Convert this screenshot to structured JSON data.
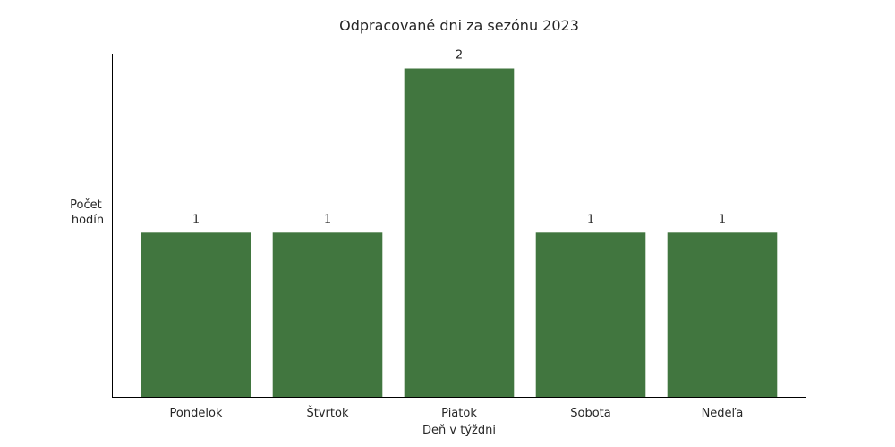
{
  "chart_data": {
    "type": "bar",
    "title": "Odpracované dni za sezónu 2023",
    "xlabel": "Deň v týždni",
    "ylabel_lines": [
      "Počet",
      "hodín"
    ],
    "categories": [
      "Pondelok",
      "Štvrtok",
      "Piatok",
      "Sobota",
      "Nedeľa"
    ],
    "values": [
      1,
      1,
      2,
      1,
      1
    ],
    "ylim": [
      0,
      2.09
    ],
    "grid": false,
    "legend": "none",
    "bar_color": "#41763f"
  }
}
